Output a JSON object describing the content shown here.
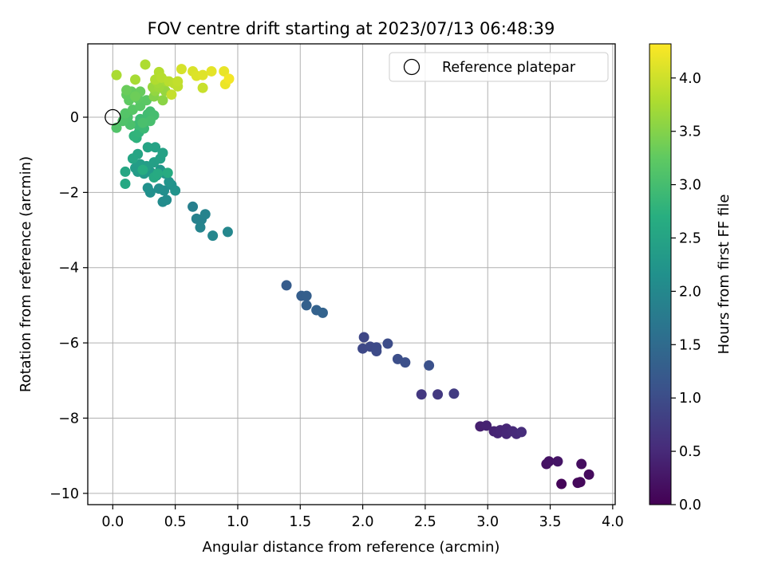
{
  "chart_data": {
    "type": "scatter",
    "title": "FOV centre drift starting at 2023/07/13 06:48:39",
    "xlabel": "Angular distance from reference (arcmin)",
    "ylabel": "Rotation from reference (arcmin)",
    "xlim": [
      -0.2,
      4.02
    ],
    "ylim": [
      -10.3,
      1.95
    ],
    "xticks": [
      0.0,
      0.5,
      1.0,
      1.5,
      2.0,
      2.5,
      3.0,
      3.5,
      4.0
    ],
    "xtick_labels": [
      "0.0",
      "0.5",
      "1.0",
      "1.5",
      "2.0",
      "2.5",
      "3.0",
      "3.5",
      "4.0"
    ],
    "yticks": [
      0,
      -2,
      -4,
      -6,
      -8,
      -10
    ],
    "ytick_labels": [
      "0",
      "−2",
      "−4",
      "−6",
      "−8",
      "−10"
    ],
    "grid": true,
    "legend": {
      "position": "top-right",
      "entries": [
        "Reference platepar"
      ]
    },
    "reference_point": {
      "x": 0.0,
      "y": 0.0
    },
    "colorbar": {
      "label": "Hours from first FF file",
      "colormap": "viridis",
      "range": [
        0.0,
        4.32
      ],
      "ticks": [
        0.0,
        0.5,
        1.0,
        1.5,
        2.0,
        2.5,
        3.0,
        3.5,
        4.0
      ],
      "tick_labels": [
        "0.0",
        "0.5",
        "1.0",
        "1.5",
        "2.0",
        "2.5",
        "3.0",
        "3.5",
        "4.0"
      ]
    },
    "points": [
      {
        "x": 3.59,
        "y": -9.75,
        "c": 0.05
      },
      {
        "x": 3.72,
        "y": -9.72,
        "c": 0.08
      },
      {
        "x": 3.74,
        "y": -9.7,
        "c": 0.1
      },
      {
        "x": 3.81,
        "y": -9.5,
        "c": 0.12
      },
      {
        "x": 3.75,
        "y": -9.22,
        "c": 0.15
      },
      {
        "x": 3.47,
        "y": -9.22,
        "c": 0.2
      },
      {
        "x": 3.49,
        "y": -9.15,
        "c": 0.22
      },
      {
        "x": 3.56,
        "y": -9.15,
        "c": 0.25
      },
      {
        "x": 2.94,
        "y": -8.22,
        "c": 0.38
      },
      {
        "x": 2.99,
        "y": -8.2,
        "c": 0.4
      },
      {
        "x": 3.05,
        "y": -8.35,
        "c": 0.42
      },
      {
        "x": 3.08,
        "y": -8.4,
        "c": 0.44
      },
      {
        "x": 3.1,
        "y": -8.32,
        "c": 0.45
      },
      {
        "x": 3.15,
        "y": -8.28,
        "c": 0.47
      },
      {
        "x": 3.15,
        "y": -8.42,
        "c": 0.48
      },
      {
        "x": 3.2,
        "y": -8.35,
        "c": 0.5
      },
      {
        "x": 3.23,
        "y": -8.42,
        "c": 0.52
      },
      {
        "x": 3.27,
        "y": -8.37,
        "c": 0.54
      },
      {
        "x": 2.47,
        "y": -7.37,
        "c": 0.7
      },
      {
        "x": 2.6,
        "y": -7.37,
        "c": 0.72
      },
      {
        "x": 2.73,
        "y": -7.35,
        "c": 0.75
      },
      {
        "x": 2.01,
        "y": -5.85,
        "c": 0.92
      },
      {
        "x": 2.0,
        "y": -6.15,
        "c": 0.94
      },
      {
        "x": 2.06,
        "y": -6.1,
        "c": 0.95
      },
      {
        "x": 2.11,
        "y": -6.12,
        "c": 0.97
      },
      {
        "x": 2.11,
        "y": -6.22,
        "c": 0.98
      },
      {
        "x": 2.2,
        "y": -6.02,
        "c": 1.0
      },
      {
        "x": 2.28,
        "y": -6.43,
        "c": 1.02
      },
      {
        "x": 2.34,
        "y": -6.52,
        "c": 1.05
      },
      {
        "x": 2.53,
        "y": -6.6,
        "c": 1.07
      },
      {
        "x": 1.39,
        "y": -4.47,
        "c": 1.25
      },
      {
        "x": 1.51,
        "y": -4.75,
        "c": 1.28
      },
      {
        "x": 1.55,
        "y": -4.75,
        "c": 1.3
      },
      {
        "x": 1.55,
        "y": -5.0,
        "c": 1.32
      },
      {
        "x": 1.63,
        "y": -5.13,
        "c": 1.35
      },
      {
        "x": 1.68,
        "y": -5.2,
        "c": 1.37
      },
      {
        "x": 0.64,
        "y": -2.38,
        "c": 1.85
      },
      {
        "x": 0.67,
        "y": -2.7,
        "c": 1.88
      },
      {
        "x": 0.71,
        "y": -2.72,
        "c": 1.9
      },
      {
        "x": 0.74,
        "y": -2.58,
        "c": 1.92
      },
      {
        "x": 0.7,
        "y": -2.93,
        "c": 1.94
      },
      {
        "x": 0.8,
        "y": -3.15,
        "c": 1.96
      },
      {
        "x": 0.92,
        "y": -3.05,
        "c": 1.98
      },
      {
        "x": 0.4,
        "y": -2.25,
        "c": 2.05
      },
      {
        "x": 0.43,
        "y": -2.2,
        "c": 2.08
      },
      {
        "x": 0.41,
        "y": -1.95,
        "c": 2.1
      },
      {
        "x": 0.37,
        "y": -1.9,
        "c": 2.12
      },
      {
        "x": 0.3,
        "y": -2.0,
        "c": 2.14
      },
      {
        "x": 0.28,
        "y": -1.88,
        "c": 2.16
      },
      {
        "x": 0.47,
        "y": -1.8,
        "c": 2.18
      },
      {
        "x": 0.5,
        "y": -1.95,
        "c": 2.2
      },
      {
        "x": 0.45,
        "y": -1.72,
        "c": 2.22
      },
      {
        "x": 0.42,
        "y": -1.5,
        "c": 2.24
      },
      {
        "x": 0.38,
        "y": -1.4,
        "c": 2.26
      },
      {
        "x": 0.35,
        "y": -1.55,
        "c": 2.28
      },
      {
        "x": 0.3,
        "y": -1.45,
        "c": 2.3
      },
      {
        "x": 0.25,
        "y": -1.5,
        "c": 2.32
      },
      {
        "x": 0.2,
        "y": -1.45,
        "c": 2.34
      },
      {
        "x": 0.18,
        "y": -1.35,
        "c": 2.36
      },
      {
        "x": 0.22,
        "y": -1.25,
        "c": 2.38
      },
      {
        "x": 0.27,
        "y": -1.3,
        "c": 2.4
      },
      {
        "x": 0.33,
        "y": -1.2,
        "c": 2.42
      },
      {
        "x": 0.38,
        "y": -1.1,
        "c": 2.44
      },
      {
        "x": 0.4,
        "y": -0.95,
        "c": 2.46
      },
      {
        "x": 0.34,
        "y": -0.8,
        "c": 2.48
      },
      {
        "x": 0.28,
        "y": -0.8,
        "c": 2.5
      },
      {
        "x": 0.2,
        "y": -0.98,
        "c": 2.52
      },
      {
        "x": 0.16,
        "y": -1.1,
        "c": 2.54
      },
      {
        "x": 0.1,
        "y": -1.45,
        "c": 2.56
      },
      {
        "x": 0.1,
        "y": -1.77,
        "c": 2.58
      },
      {
        "x": 0.33,
        "y": -1.6,
        "c": 2.6
      },
      {
        "x": 0.36,
        "y": -1.5,
        "c": 2.62
      },
      {
        "x": 0.44,
        "y": -1.48,
        "c": 2.64
      },
      {
        "x": 0.24,
        "y": -1.4,
        "c": 2.66
      },
      {
        "x": 0.19,
        "y": -0.55,
        "c": 2.75
      },
      {
        "x": 0.17,
        "y": -0.5,
        "c": 2.78
      },
      {
        "x": 0.21,
        "y": -0.4,
        "c": 2.8
      },
      {
        "x": 0.25,
        "y": -0.3,
        "c": 2.9
      },
      {
        "x": 0.2,
        "y": -0.2,
        "c": 2.92
      },
      {
        "x": 0.22,
        "y": -0.05,
        "c": 2.94
      },
      {
        "x": 0.28,
        "y": 0.08,
        "c": 2.96
      },
      {
        "x": 0.3,
        "y": 0.15,
        "c": 2.98
      },
      {
        "x": 0.33,
        "y": 0.05,
        "c": 3.0
      },
      {
        "x": 0.3,
        "y": -0.1,
        "c": 3.02
      },
      {
        "x": 0.24,
        "y": -0.15,
        "c": 3.04
      },
      {
        "x": 0.14,
        "y": -0.2,
        "c": 3.06
      },
      {
        "x": 0.12,
        "y": 0.0,
        "c": 3.08
      },
      {
        "x": 0.08,
        "y": -0.1,
        "c": 3.1
      },
      {
        "x": 0.03,
        "y": -0.28,
        "c": 3.12
      },
      {
        "x": 0.1,
        "y": 0.1,
        "c": 3.14
      },
      {
        "x": 0.16,
        "y": 0.2,
        "c": 3.16
      },
      {
        "x": 0.22,
        "y": 0.3,
        "c": 3.18
      },
      {
        "x": 0.27,
        "y": 0.45,
        "c": 3.2
      },
      {
        "x": 0.2,
        "y": 0.5,
        "c": 3.22
      },
      {
        "x": 0.13,
        "y": 0.45,
        "c": 3.24
      },
      {
        "x": 0.11,
        "y": 0.6,
        "c": 3.26
      },
      {
        "x": 0.15,
        "y": 0.68,
        "c": 3.28
      },
      {
        "x": 0.22,
        "y": 0.68,
        "c": 3.3
      },
      {
        "x": 0.11,
        "y": 0.72,
        "c": 3.32
      },
      {
        "x": 0.18,
        "y": 0.55,
        "c": 3.34
      },
      {
        "x": 0.33,
        "y": 0.55,
        "c": 3.5
      },
      {
        "x": 0.4,
        "y": 0.45,
        "c": 3.55
      },
      {
        "x": 0.34,
        "y": 0.7,
        "c": 3.6
      },
      {
        "x": 0.42,
        "y": 0.7,
        "c": 3.62
      },
      {
        "x": 0.32,
        "y": 0.8,
        "c": 3.65
      },
      {
        "x": 0.37,
        "y": 0.8,
        "c": 3.67
      },
      {
        "x": 0.36,
        "y": 0.92,
        "c": 3.7
      },
      {
        "x": 0.43,
        "y": 0.95,
        "c": 3.72
      },
      {
        "x": 0.18,
        "y": 1.0,
        "c": 3.74
      },
      {
        "x": 0.03,
        "y": 1.12,
        "c": 3.76
      },
      {
        "x": 0.26,
        "y": 1.4,
        "c": 3.78
      },
      {
        "x": 0.34,
        "y": 1.0,
        "c": 3.8
      },
      {
        "x": 0.37,
        "y": 1.2,
        "c": 3.82
      },
      {
        "x": 0.39,
        "y": 1.05,
        "c": 3.84
      },
      {
        "x": 0.45,
        "y": 0.95,
        "c": 3.86
      },
      {
        "x": 0.49,
        "y": 0.9,
        "c": 3.88
      },
      {
        "x": 0.52,
        "y": 0.82,
        "c": 3.9
      },
      {
        "x": 0.52,
        "y": 0.95,
        "c": 3.92
      },
      {
        "x": 0.47,
        "y": 0.6,
        "c": 3.94
      },
      {
        "x": 0.72,
        "y": 0.78,
        "c": 3.96
      },
      {
        "x": 0.55,
        "y": 1.28,
        "c": 4.05
      },
      {
        "x": 0.64,
        "y": 1.22,
        "c": 4.08
      },
      {
        "x": 0.67,
        "y": 1.1,
        "c": 4.1
      },
      {
        "x": 0.72,
        "y": 1.12,
        "c": 4.12
      },
      {
        "x": 0.79,
        "y": 1.22,
        "c": 4.15
      },
      {
        "x": 0.89,
        "y": 1.22,
        "c": 4.18
      },
      {
        "x": 0.9,
        "y": 0.88,
        "c": 4.2
      },
      {
        "x": 0.93,
        "y": 1.02,
        "c": 4.25
      }
    ]
  }
}
